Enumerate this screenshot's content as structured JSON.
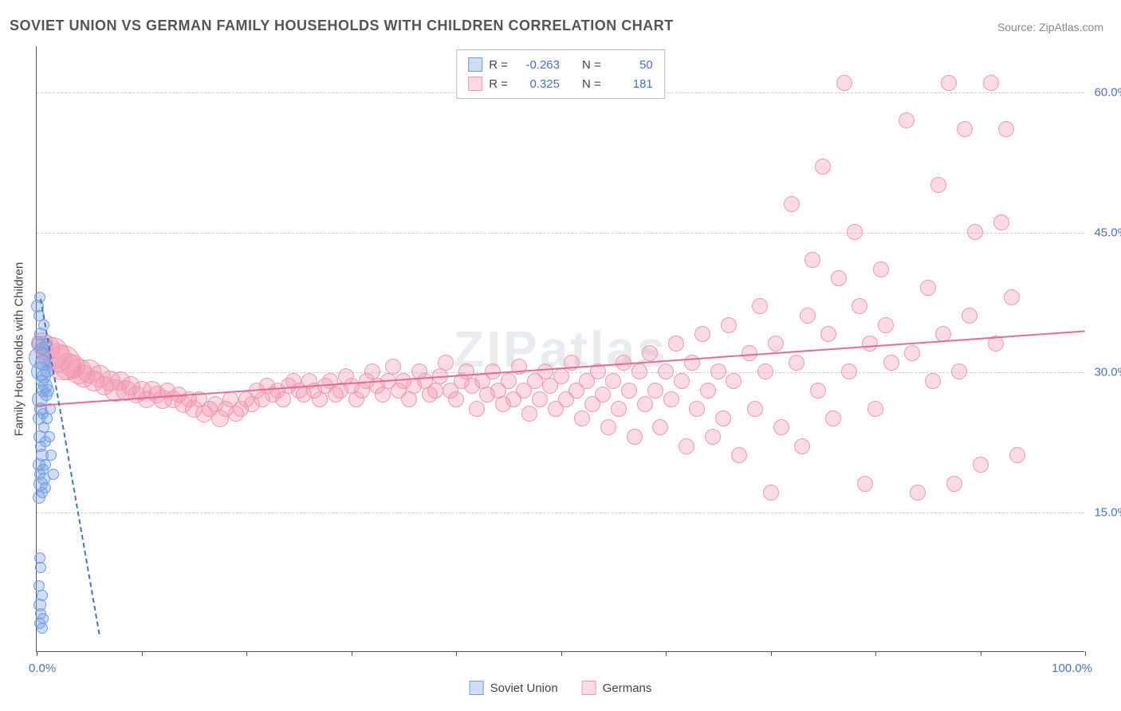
{
  "title": "SOVIET UNION VS GERMAN FAMILY HOUSEHOLDS WITH CHILDREN CORRELATION CHART",
  "source": "Source: ZipAtlas.com",
  "watermark": "ZIPatlas",
  "chart": {
    "type": "scatter",
    "background_color": "#ffffff",
    "grid_color": "#cccccc",
    "grid_dash": true,
    "axis_color": "#555555",
    "y_axis_title": "Family Households with Children",
    "xlim": [
      0,
      100
    ],
    "ylim": [
      0,
      65
    ],
    "x_ticks": [
      0,
      10,
      20,
      30,
      40,
      50,
      60,
      70,
      80,
      90,
      100
    ],
    "x_tick_min_label": "0.0%",
    "x_tick_max_label": "100.0%",
    "y_gridlines": [
      15,
      30,
      45,
      60
    ],
    "y_gridline_labels": [
      "15.0%",
      "30.0%",
      "45.0%",
      "60.0%"
    ],
    "tick_label_color": "#4a73c4",
    "tick_label_fontsize": 15,
    "axis_title_fontsize": 15,
    "axis_title_color": "#444444"
  },
  "series": {
    "soviet": {
      "label": "Soviet Union",
      "fill_color": "rgba(120,160,225,0.35)",
      "stroke_color": "#6f9de0",
      "trend_color": "#3f74c9",
      "trend_dash": true,
      "R": "-0.263",
      "N": "50",
      "points": [
        {
          "x": 0.1,
          "y": 37,
          "r": 8
        },
        {
          "x": 0.3,
          "y": 38,
          "r": 7
        },
        {
          "x": 0.2,
          "y": 36,
          "r": 7
        },
        {
          "x": 0.4,
          "y": 34,
          "r": 8
        },
        {
          "x": 0.2,
          "y": 33,
          "r": 9
        },
        {
          "x": 0.5,
          "y": 32.5,
          "r": 8
        },
        {
          "x": 0.3,
          "y": 31.5,
          "r": 14
        },
        {
          "x": 0.6,
          "y": 31,
          "r": 10
        },
        {
          "x": 0.4,
          "y": 30,
          "r": 12
        },
        {
          "x": 0.7,
          "y": 29.5,
          "r": 9
        },
        {
          "x": 0.5,
          "y": 29,
          "r": 8
        },
        {
          "x": 0.8,
          "y": 28.5,
          "r": 9
        },
        {
          "x": 0.6,
          "y": 28,
          "r": 8
        },
        {
          "x": 0.3,
          "y": 27,
          "r": 10
        },
        {
          "x": 0.9,
          "y": 27.5,
          "r": 8
        },
        {
          "x": 0.4,
          "y": 26,
          "r": 8
        },
        {
          "x": 0.6,
          "y": 25.5,
          "r": 7
        },
        {
          "x": 0.2,
          "y": 25,
          "r": 8
        },
        {
          "x": 0.7,
          "y": 24,
          "r": 7
        },
        {
          "x": 0.3,
          "y": 23,
          "r": 8
        },
        {
          "x": 0.8,
          "y": 22.5,
          "r": 7
        },
        {
          "x": 0.4,
          "y": 22,
          "r": 7
        },
        {
          "x": 0.5,
          "y": 21,
          "r": 8
        },
        {
          "x": 0.2,
          "y": 20,
          "r": 8
        },
        {
          "x": 0.6,
          "y": 19.5,
          "r": 7
        },
        {
          "x": 0.3,
          "y": 19,
          "r": 7
        },
        {
          "x": 0.7,
          "y": 18.5,
          "r": 8
        },
        {
          "x": 0.4,
          "y": 18,
          "r": 9
        },
        {
          "x": 0.8,
          "y": 17.5,
          "r": 7
        },
        {
          "x": 0.5,
          "y": 17,
          "r": 7
        },
        {
          "x": 0.2,
          "y": 16.5,
          "r": 8
        },
        {
          "x": 1.0,
          "y": 25,
          "r": 7
        },
        {
          "x": 1.2,
          "y": 23,
          "r": 7
        },
        {
          "x": 1.4,
          "y": 21,
          "r": 7
        },
        {
          "x": 1.6,
          "y": 19,
          "r": 7
        },
        {
          "x": 1.1,
          "y": 28,
          "r": 8
        },
        {
          "x": 1.3,
          "y": 26,
          "r": 7
        },
        {
          "x": 0.3,
          "y": 10,
          "r": 7
        },
        {
          "x": 0.4,
          "y": 9,
          "r": 7
        },
        {
          "x": 0.2,
          "y": 7,
          "r": 7
        },
        {
          "x": 0.5,
          "y": 6,
          "r": 7
        },
        {
          "x": 0.3,
          "y": 5,
          "r": 8
        },
        {
          "x": 0.4,
          "y": 4,
          "r": 7
        },
        {
          "x": 0.6,
          "y": 3.5,
          "r": 7
        },
        {
          "x": 0.3,
          "y": 3,
          "r": 7
        },
        {
          "x": 0.5,
          "y": 2.5,
          "r": 7
        },
        {
          "x": 0.7,
          "y": 35,
          "r": 7
        },
        {
          "x": 0.9,
          "y": 33,
          "r": 7
        },
        {
          "x": 1.0,
          "y": 30,
          "r": 8
        },
        {
          "x": 0.8,
          "y": 20,
          "r": 7
        }
      ],
      "trend": {
        "x1": 0.4,
        "y1": 38,
        "x2": 6,
        "y2": 2
      }
    },
    "german": {
      "label": "Germans",
      "fill_color": "rgba(240,150,175,0.35)",
      "stroke_color": "#ec9ab1",
      "trend_color": "#e66a93",
      "trend_dash": false,
      "R": "0.325",
      "N": "181",
      "points": [
        {
          "x": 0.5,
          "y": 33,
          "r": 14
        },
        {
          "x": 1,
          "y": 32.5,
          "r": 16
        },
        {
          "x": 1.5,
          "y": 32,
          "r": 20
        },
        {
          "x": 2,
          "y": 31.5,
          "r": 18
        },
        {
          "x": 2.5,
          "y": 31,
          "r": 22
        },
        {
          "x": 3,
          "y": 30.5,
          "r": 17
        },
        {
          "x": 3.5,
          "y": 30.5,
          "r": 15
        },
        {
          "x": 4,
          "y": 30,
          "r": 16
        },
        {
          "x": 4.5,
          "y": 29.5,
          "r": 14
        },
        {
          "x": 5,
          "y": 30,
          "r": 15
        },
        {
          "x": 5.5,
          "y": 29,
          "r": 13
        },
        {
          "x": 6,
          "y": 29.5,
          "r": 14
        },
        {
          "x": 6.5,
          "y": 28.5,
          "r": 12
        },
        {
          "x": 7,
          "y": 29,
          "r": 13
        },
        {
          "x": 7.5,
          "y": 28,
          "r": 14
        },
        {
          "x": 8,
          "y": 29,
          "r": 12
        },
        {
          "x": 8.5,
          "y": 28,
          "r": 13
        },
        {
          "x": 9,
          "y": 28.5,
          "r": 12
        },
        {
          "x": 9.5,
          "y": 27.5,
          "r": 11
        },
        {
          "x": 10,
          "y": 28,
          "r": 12
        },
        {
          "x": 10.5,
          "y": 27,
          "r": 11
        },
        {
          "x": 11,
          "y": 28,
          "r": 12
        },
        {
          "x": 11.5,
          "y": 27.5,
          "r": 11
        },
        {
          "x": 12,
          "y": 27,
          "r": 12
        },
        {
          "x": 12.5,
          "y": 28,
          "r": 10
        },
        {
          "x": 13,
          "y": 27,
          "r": 11
        },
        {
          "x": 13.5,
          "y": 27.5,
          "r": 10
        },
        {
          "x": 14,
          "y": 26.5,
          "r": 11
        },
        {
          "x": 14.5,
          "y": 27,
          "r": 10
        },
        {
          "x": 15,
          "y": 26,
          "r": 11
        },
        {
          "x": 15.5,
          "y": 27,
          "r": 10
        },
        {
          "x": 16,
          "y": 25.5,
          "r": 11
        },
        {
          "x": 16.5,
          "y": 26,
          "r": 10
        },
        {
          "x": 17,
          "y": 26.5,
          "r": 10
        },
        {
          "x": 17.5,
          "y": 25,
          "r": 11
        },
        {
          "x": 18,
          "y": 26,
          "r": 10
        },
        {
          "x": 18.5,
          "y": 27,
          "r": 10
        },
        {
          "x": 19,
          "y": 25.5,
          "r": 10
        },
        {
          "x": 19.5,
          "y": 26,
          "r": 10
        },
        {
          "x": 20,
          "y": 27,
          "r": 10
        },
        {
          "x": 20.5,
          "y": 26.5,
          "r": 10
        },
        {
          "x": 21,
          "y": 28,
          "r": 10
        },
        {
          "x": 21.5,
          "y": 27,
          "r": 10
        },
        {
          "x": 22,
          "y": 28.5,
          "r": 10
        },
        {
          "x": 22.5,
          "y": 27.5,
          "r": 10
        },
        {
          "x": 23,
          "y": 28,
          "r": 10
        },
        {
          "x": 23.5,
          "y": 27,
          "r": 10
        },
        {
          "x": 24,
          "y": 28.5,
          "r": 10
        },
        {
          "x": 24.5,
          "y": 29,
          "r": 10
        },
        {
          "x": 25,
          "y": 28,
          "r": 10
        },
        {
          "x": 25.5,
          "y": 27.5,
          "r": 10
        },
        {
          "x": 26,
          "y": 29,
          "r": 10
        },
        {
          "x": 26.5,
          "y": 28,
          "r": 10
        },
        {
          "x": 27,
          "y": 27,
          "r": 10
        },
        {
          "x": 27.5,
          "y": 28.5,
          "r": 10
        },
        {
          "x": 28,
          "y": 29,
          "r": 10
        },
        {
          "x": 28.5,
          "y": 27.5,
          "r": 10
        },
        {
          "x": 29,
          "y": 28,
          "r": 10
        },
        {
          "x": 29.5,
          "y": 29.5,
          "r": 10
        },
        {
          "x": 30,
          "y": 28.5,
          "r": 10
        },
        {
          "x": 30.5,
          "y": 27,
          "r": 10
        },
        {
          "x": 31,
          "y": 28,
          "r": 10
        },
        {
          "x": 31.5,
          "y": 29,
          "r": 10
        },
        {
          "x": 32,
          "y": 30,
          "r": 10
        },
        {
          "x": 32.5,
          "y": 28.5,
          "r": 10
        },
        {
          "x": 33,
          "y": 27.5,
          "r": 10
        },
        {
          "x": 33.5,
          "y": 29,
          "r": 10
        },
        {
          "x": 34,
          "y": 30.5,
          "r": 10
        },
        {
          "x": 34.5,
          "y": 28,
          "r": 10
        },
        {
          "x": 35,
          "y": 29,
          "r": 10
        },
        {
          "x": 35.5,
          "y": 27,
          "r": 10
        },
        {
          "x": 36,
          "y": 28.5,
          "r": 10
        },
        {
          "x": 36.5,
          "y": 30,
          "r": 10
        },
        {
          "x": 37,
          "y": 29,
          "r": 10
        },
        {
          "x": 37.5,
          "y": 27.5,
          "r": 10
        },
        {
          "x": 38,
          "y": 28,
          "r": 10
        },
        {
          "x": 38.5,
          "y": 29.5,
          "r": 10
        },
        {
          "x": 39,
          "y": 31,
          "r": 10
        },
        {
          "x": 39.5,
          "y": 28,
          "r": 10
        },
        {
          "x": 40,
          "y": 27,
          "r": 10
        },
        {
          "x": 40.5,
          "y": 29,
          "r": 10
        },
        {
          "x": 41,
          "y": 30,
          "r": 10
        },
        {
          "x": 41.5,
          "y": 28.5,
          "r": 10
        },
        {
          "x": 42,
          "y": 26,
          "r": 10
        },
        {
          "x": 42.5,
          "y": 29,
          "r": 10
        },
        {
          "x": 43,
          "y": 27.5,
          "r": 10
        },
        {
          "x": 43.5,
          "y": 30,
          "r": 10
        },
        {
          "x": 44,
          "y": 28,
          "r": 10
        },
        {
          "x": 44.5,
          "y": 26.5,
          "r": 10
        },
        {
          "x": 45,
          "y": 29,
          "r": 10
        },
        {
          "x": 45.5,
          "y": 27,
          "r": 10
        },
        {
          "x": 46,
          "y": 30.5,
          "r": 10
        },
        {
          "x": 46.5,
          "y": 28,
          "r": 10
        },
        {
          "x": 47,
          "y": 25.5,
          "r": 10
        },
        {
          "x": 47.5,
          "y": 29,
          "r": 10
        },
        {
          "x": 48,
          "y": 27,
          "r": 10
        },
        {
          "x": 48.5,
          "y": 30,
          "r": 10
        },
        {
          "x": 49,
          "y": 28.5,
          "r": 10
        },
        {
          "x": 49.5,
          "y": 26,
          "r": 10
        },
        {
          "x": 50,
          "y": 29.5,
          "r": 10
        },
        {
          "x": 50.5,
          "y": 27,
          "r": 10
        },
        {
          "x": 51,
          "y": 31,
          "r": 10
        },
        {
          "x": 51.5,
          "y": 28,
          "r": 10
        },
        {
          "x": 52,
          "y": 25,
          "r": 10
        },
        {
          "x": 52.5,
          "y": 29,
          "r": 10
        },
        {
          "x": 53,
          "y": 26.5,
          "r": 10
        },
        {
          "x": 53.5,
          "y": 30,
          "r": 10
        },
        {
          "x": 54,
          "y": 27.5,
          "r": 10
        },
        {
          "x": 54.5,
          "y": 24,
          "r": 10
        },
        {
          "x": 55,
          "y": 29,
          "r": 10
        },
        {
          "x": 55.5,
          "y": 26,
          "r": 10
        },
        {
          "x": 56,
          "y": 31,
          "r": 10
        },
        {
          "x": 56.5,
          "y": 28,
          "r": 10
        },
        {
          "x": 57,
          "y": 23,
          "r": 10
        },
        {
          "x": 57.5,
          "y": 30,
          "r": 10
        },
        {
          "x": 58,
          "y": 26.5,
          "r": 10
        },
        {
          "x": 58.5,
          "y": 32,
          "r": 10
        },
        {
          "x": 59,
          "y": 28,
          "r": 10
        },
        {
          "x": 59.5,
          "y": 24,
          "r": 10
        },
        {
          "x": 60,
          "y": 30,
          "r": 10
        },
        {
          "x": 60.5,
          "y": 27,
          "r": 10
        },
        {
          "x": 61,
          "y": 33,
          "r": 10
        },
        {
          "x": 61.5,
          "y": 29,
          "r": 10
        },
        {
          "x": 62,
          "y": 22,
          "r": 10
        },
        {
          "x": 62.5,
          "y": 31,
          "r": 10
        },
        {
          "x": 63,
          "y": 26,
          "r": 10
        },
        {
          "x": 63.5,
          "y": 34,
          "r": 10
        },
        {
          "x": 64,
          "y": 28,
          "r": 10
        },
        {
          "x": 64.5,
          "y": 23,
          "r": 10
        },
        {
          "x": 65,
          "y": 30,
          "r": 10
        },
        {
          "x": 65.5,
          "y": 25,
          "r": 10
        },
        {
          "x": 66,
          "y": 35,
          "r": 10
        },
        {
          "x": 66.5,
          "y": 29,
          "r": 10
        },
        {
          "x": 67,
          "y": 21,
          "r": 10
        },
        {
          "x": 68,
          "y": 32,
          "r": 10
        },
        {
          "x": 68.5,
          "y": 26,
          "r": 10
        },
        {
          "x": 69,
          "y": 37,
          "r": 10
        },
        {
          "x": 69.5,
          "y": 30,
          "r": 10
        },
        {
          "x": 70,
          "y": 17,
          "r": 10
        },
        {
          "x": 70.5,
          "y": 33,
          "r": 10
        },
        {
          "x": 71,
          "y": 24,
          "r": 10
        },
        {
          "x": 72,
          "y": 48,
          "r": 10
        },
        {
          "x": 72.5,
          "y": 31,
          "r": 10
        },
        {
          "x": 73,
          "y": 22,
          "r": 10
        },
        {
          "x": 73.5,
          "y": 36,
          "r": 10
        },
        {
          "x": 74,
          "y": 42,
          "r": 10
        },
        {
          "x": 74.5,
          "y": 28,
          "r": 10
        },
        {
          "x": 75,
          "y": 52,
          "r": 10
        },
        {
          "x": 75.5,
          "y": 34,
          "r": 10
        },
        {
          "x": 76,
          "y": 25,
          "r": 10
        },
        {
          "x": 76.5,
          "y": 40,
          "r": 10
        },
        {
          "x": 77,
          "y": 61,
          "r": 10
        },
        {
          "x": 77.5,
          "y": 30,
          "r": 10
        },
        {
          "x": 78,
          "y": 45,
          "r": 10
        },
        {
          "x": 78.5,
          "y": 37,
          "r": 10
        },
        {
          "x": 79,
          "y": 18,
          "r": 10
        },
        {
          "x": 79.5,
          "y": 33,
          "r": 10
        },
        {
          "x": 80,
          "y": 26,
          "r": 10
        },
        {
          "x": 80.5,
          "y": 41,
          "r": 10
        },
        {
          "x": 81,
          "y": 35,
          "r": 10
        },
        {
          "x": 81.5,
          "y": 31,
          "r": 10
        },
        {
          "x": 83,
          "y": 57,
          "r": 10
        },
        {
          "x": 83.5,
          "y": 32,
          "r": 10
        },
        {
          "x": 84,
          "y": 17,
          "r": 10
        },
        {
          "x": 85,
          "y": 39,
          "r": 10
        },
        {
          "x": 85.5,
          "y": 29,
          "r": 10
        },
        {
          "x": 86,
          "y": 50,
          "r": 10
        },
        {
          "x": 86.5,
          "y": 34,
          "r": 10
        },
        {
          "x": 87,
          "y": 61,
          "r": 10
        },
        {
          "x": 87.5,
          "y": 18,
          "r": 10
        },
        {
          "x": 88,
          "y": 30,
          "r": 10
        },
        {
          "x": 88.5,
          "y": 56,
          "r": 10
        },
        {
          "x": 89,
          "y": 36,
          "r": 10
        },
        {
          "x": 89.5,
          "y": 45,
          "r": 10
        },
        {
          "x": 90,
          "y": 20,
          "r": 10
        },
        {
          "x": 91,
          "y": 61,
          "r": 10
        },
        {
          "x": 91.5,
          "y": 33,
          "r": 10
        },
        {
          "x": 92,
          "y": 46,
          "r": 10
        },
        {
          "x": 92.5,
          "y": 56,
          "r": 10
        },
        {
          "x": 93,
          "y": 38,
          "r": 10
        },
        {
          "x": 93.5,
          "y": 21,
          "r": 10
        }
      ],
      "trend": {
        "x1": 0,
        "y1": 26.5,
        "x2": 100,
        "y2": 34.5
      }
    }
  },
  "legend_top": {
    "R_label": "R =",
    "N_label": "N ="
  },
  "legend_bottom": {
    "soviet_label": "Soviet Union",
    "german_label": "Germans"
  }
}
